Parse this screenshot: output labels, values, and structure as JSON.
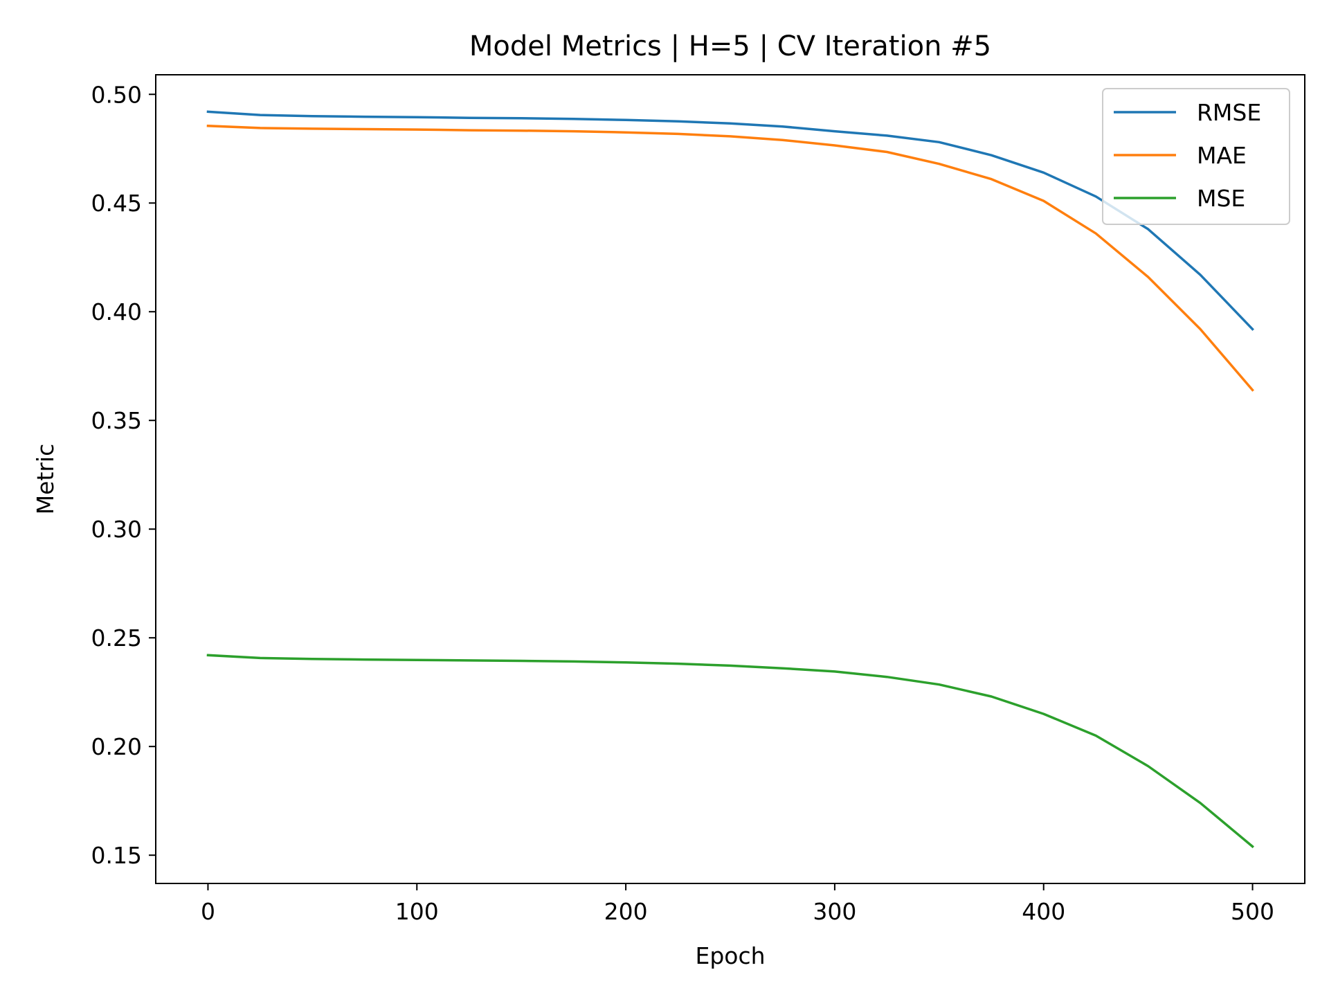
{
  "chart_data": {
    "type": "line",
    "title": "Model Metrics | H=5 | CV Iteration #5",
    "xlabel": "Epoch",
    "ylabel": "Metric",
    "xlim": [
      -25,
      525
    ],
    "ylim": [
      0.137,
      0.509
    ],
    "xticks": [
      0,
      100,
      200,
      300,
      400,
      500
    ],
    "yticks": [
      0.15,
      0.2,
      0.25,
      0.3,
      0.35,
      0.4,
      0.45,
      0.5
    ],
    "xtick_labels": [
      "0",
      "100",
      "200",
      "300",
      "400",
      "500"
    ],
    "ytick_labels": [
      "0.15",
      "0.20",
      "0.25",
      "0.30",
      "0.35",
      "0.40",
      "0.45",
      "0.50"
    ],
    "grid": false,
    "legend_position": "top-right",
    "x": [
      0,
      25,
      50,
      75,
      100,
      125,
      150,
      175,
      200,
      225,
      250,
      275,
      300,
      325,
      350,
      375,
      400,
      425,
      450,
      475,
      500
    ],
    "series": [
      {
        "name": "RMSE",
        "color": "#1f77b4",
        "values": [
          0.492,
          0.4905,
          0.49,
          0.4897,
          0.4895,
          0.4892,
          0.489,
          0.4887,
          0.4882,
          0.4876,
          0.4866,
          0.4852,
          0.483,
          0.481,
          0.478,
          0.472,
          0.464,
          0.453,
          0.438,
          0.417,
          0.392
        ]
      },
      {
        "name": "MAE",
        "color": "#ff7f0e",
        "values": [
          0.4855,
          0.4845,
          0.4842,
          0.484,
          0.4838,
          0.4835,
          0.4833,
          0.483,
          0.4825,
          0.4818,
          0.4807,
          0.479,
          0.4765,
          0.4735,
          0.468,
          0.461,
          0.451,
          0.436,
          0.416,
          0.392,
          0.364
        ]
      },
      {
        "name": "MSE",
        "color": "#2ca02c",
        "values": [
          0.242,
          0.2407,
          0.2403,
          0.24,
          0.2398,
          0.2396,
          0.2394,
          0.2391,
          0.2387,
          0.2381,
          0.2372,
          0.236,
          0.2345,
          0.232,
          0.2285,
          0.223,
          0.215,
          0.205,
          0.191,
          0.174,
          0.154
        ]
      }
    ]
  }
}
